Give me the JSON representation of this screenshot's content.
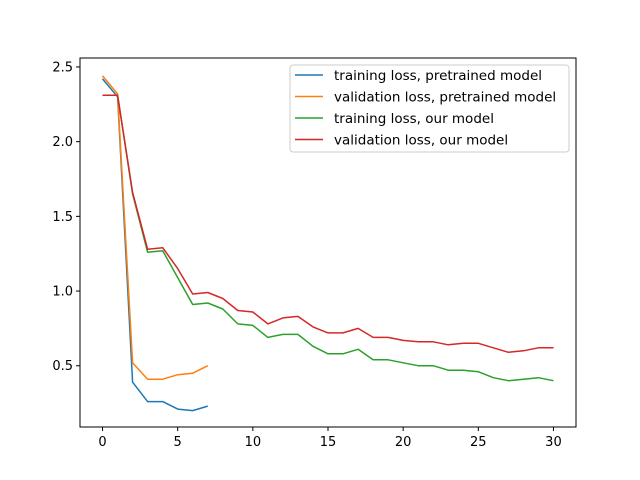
{
  "chart_data": {
    "type": "line",
    "title": "",
    "xlabel": "",
    "ylabel": "",
    "xlim": [
      -1.5,
      31.5
    ],
    "ylim": [
      0.09,
      2.56
    ],
    "x_ticks": [
      0,
      5,
      10,
      15,
      20,
      25,
      30
    ],
    "y_ticks": [
      0.5,
      1.0,
      1.5,
      2.0,
      2.5
    ],
    "x_tick_labels": [
      "0",
      "5",
      "10",
      "15",
      "20",
      "25",
      "30"
    ],
    "y_tick_labels": [
      "0.5",
      "1.0",
      "1.5",
      "2.0",
      "2.5"
    ],
    "grid": false,
    "legend_position": "top-right",
    "series": [
      {
        "name": "training loss, pretrained model",
        "color": "#1f77b4",
        "x": [
          0,
          1,
          2,
          3,
          4,
          5,
          6,
          7
        ],
        "values": [
          2.42,
          2.3,
          0.39,
          0.26,
          0.26,
          0.21,
          0.2,
          0.23
        ]
      },
      {
        "name": "validation loss, pretrained model",
        "color": "#ff7f0e",
        "x": [
          0,
          1,
          2,
          3,
          4,
          5,
          6,
          7
        ],
        "values": [
          2.44,
          2.32,
          0.52,
          0.41,
          0.41,
          0.44,
          0.45,
          0.5
        ]
      },
      {
        "name": "training loss, our model",
        "color": "#2ca02c",
        "x": [
          0,
          1,
          2,
          3,
          4,
          5,
          6,
          7,
          8,
          9,
          10,
          11,
          12,
          13,
          14,
          15,
          16,
          17,
          18,
          19,
          20,
          21,
          22,
          23,
          24,
          25,
          26,
          27,
          28,
          29,
          30
        ],
        "values": [
          2.31,
          2.31,
          1.65,
          1.26,
          1.27,
          1.09,
          0.91,
          0.92,
          0.88,
          0.78,
          0.77,
          0.69,
          0.71,
          0.71,
          0.63,
          0.58,
          0.58,
          0.61,
          0.54,
          0.54,
          0.52,
          0.5,
          0.5,
          0.47,
          0.47,
          0.46,
          0.42,
          0.4,
          0.41,
          0.42,
          0.4
        ]
      },
      {
        "name": "validation loss, our model",
        "color": "#d62728",
        "x": [
          0,
          1,
          2,
          3,
          4,
          5,
          6,
          7,
          8,
          9,
          10,
          11,
          12,
          13,
          14,
          15,
          16,
          17,
          18,
          19,
          20,
          21,
          22,
          23,
          24,
          25,
          26,
          27,
          28,
          29,
          30
        ],
        "values": [
          2.31,
          2.31,
          1.66,
          1.28,
          1.29,
          1.15,
          0.98,
          0.99,
          0.95,
          0.87,
          0.86,
          0.78,
          0.82,
          0.83,
          0.76,
          0.72,
          0.72,
          0.75,
          0.69,
          0.69,
          0.67,
          0.66,
          0.66,
          0.64,
          0.65,
          0.65,
          0.62,
          0.59,
          0.6,
          0.62,
          0.62
        ]
      }
    ]
  }
}
